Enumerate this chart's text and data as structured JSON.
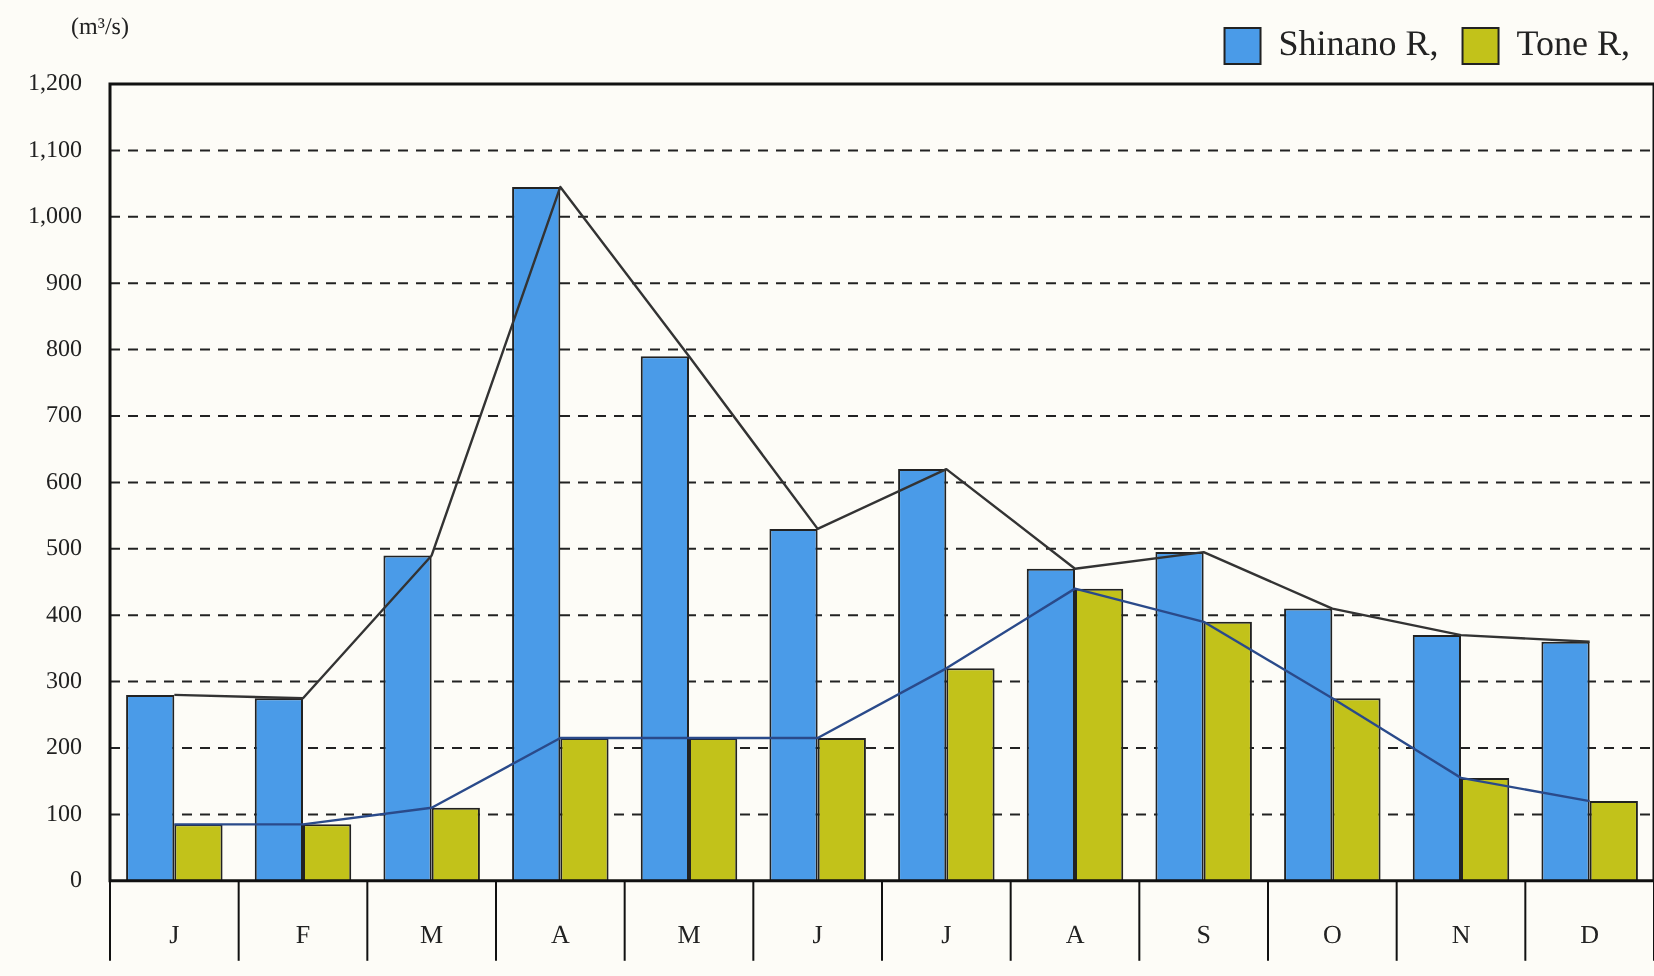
{
  "chart_data": {
    "type": "bar",
    "ylabel": "(m³/s)",
    "categories": [
      "J",
      "F",
      "M",
      "A",
      "M",
      "J",
      "J",
      "A",
      "S",
      "O",
      "N",
      "D"
    ],
    "series": [
      {
        "name": "Shinano R,",
        "color": "#4a9be8",
        "values": [
          280,
          275,
          490,
          1045,
          790,
          530,
          620,
          470,
          495,
          410,
          370,
          360
        ]
      },
      {
        "name": "Tone R,",
        "color": "#c2c21a",
        "values": [
          85,
          85,
          110,
          215,
          215,
          215,
          320,
          440,
          390,
          275,
          155,
          120
        ]
      },
      {
        "type": "line",
        "color": "#333333",
        "values": [
          280,
          275,
          490,
          1045,
          790,
          530,
          620,
          470,
          495,
          410,
          370,
          360
        ]
      },
      {
        "type": "line",
        "color": "#2a4a8a",
        "values": [
          85,
          85,
          110,
          215,
          215,
          215,
          320,
          440,
          390,
          275,
          155,
          120
        ]
      }
    ],
    "ylim": [
      0,
      1200
    ],
    "yticks": [
      0,
      {
        "value": 100,
        "label": "100"
      },
      {
        "value": 200,
        "label": "200"
      },
      {
        "value": 300,
        "label": "300"
      },
      {
        "value": 400,
        "label": "400"
      },
      {
        "value": 500,
        "label": "500"
      },
      {
        "value": 600,
        "label": "600"
      },
      {
        "value": 700,
        "label": "700"
      },
      {
        "value": 800,
        "label": "800"
      },
      {
        "value": 900,
        "label": "900"
      },
      {
        "value": 1000,
        "label": "1,000"
      },
      {
        "value": 1100,
        "label": "1,100"
      },
      {
        "value": 1200,
        "label": "1,200"
      }
    ],
    "grid": "y",
    "legend": "top right",
    "marker": "none",
    "line_style": "solid"
  }
}
